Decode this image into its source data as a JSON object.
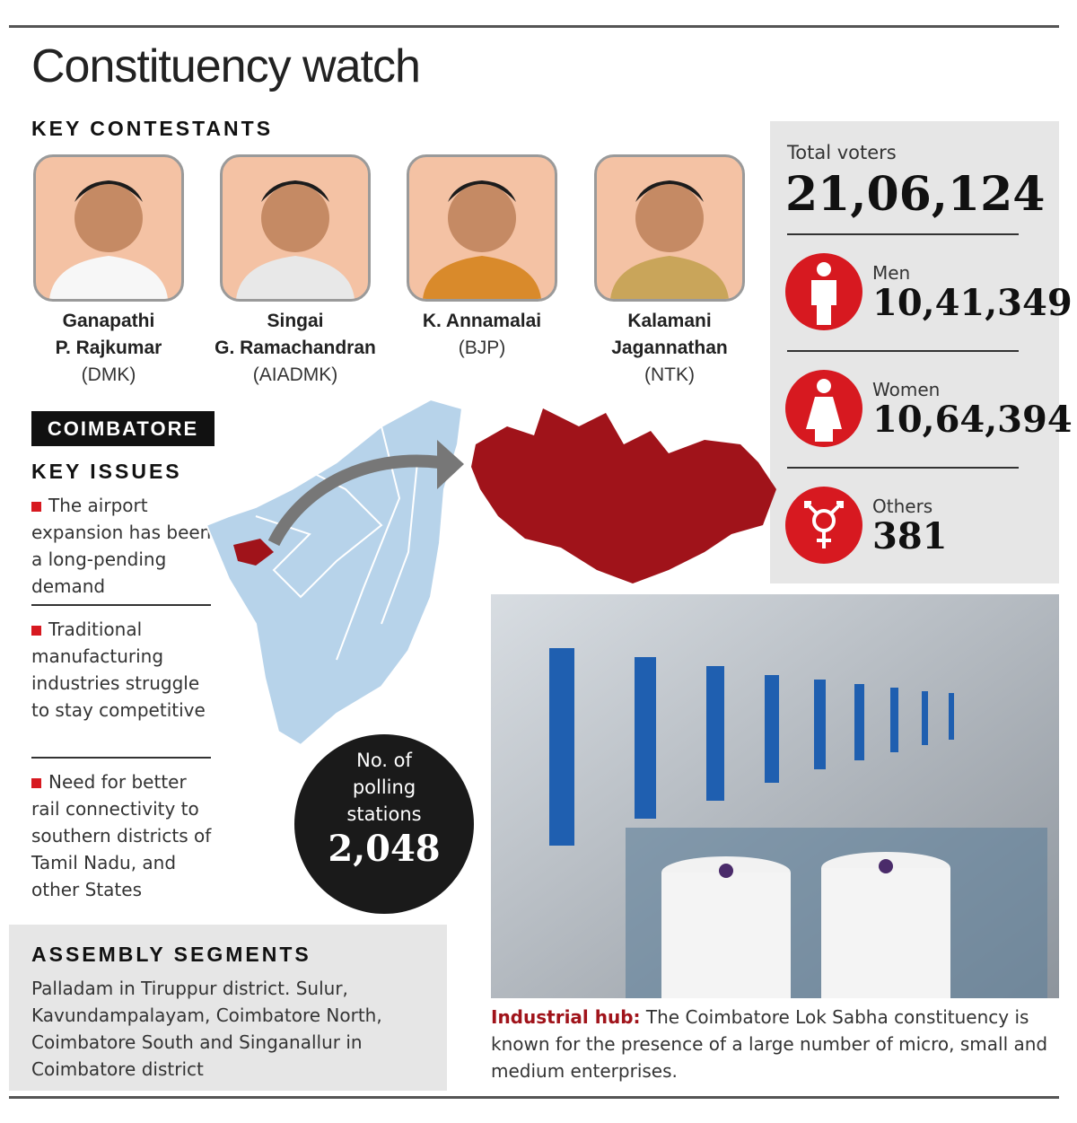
{
  "title": "Constituency watch",
  "contestants": {
    "heading": "KEY CONTESTANTS",
    "people": [
      {
        "name": [
          "Ganapathi",
          "P. Rajkumar"
        ],
        "party": "(DMK)"
      },
      {
        "name": [
          "Singai",
          "G. Ramachandran"
        ],
        "party": "(AIADMK)"
      },
      {
        "name": [
          "K. Annamalai"
        ],
        "party": "(BJP)"
      },
      {
        "name": [
          "Kalamani",
          "Jagannathan"
        ],
        "party": "(NTK)"
      }
    ]
  },
  "district": "COIMBATORE",
  "issues": {
    "heading": "KEY ISSUES",
    "items": [
      "The airport expansion has been a long-pending demand",
      "Traditional manufacturing industries struggle to stay competitive",
      "Need for better rail connectivity to southern districts of Tamil Nadu, and other States"
    ]
  },
  "voters": {
    "total_label": "Total voters",
    "total": "21,06,124",
    "groups": [
      {
        "label": "Men",
        "value": "10,41,349"
      },
      {
        "label": "Women",
        "value": "10,64,394"
      },
      {
        "label": "Others",
        "value": "381"
      }
    ]
  },
  "polling": {
    "label": "No. of polling stations",
    "value": "2,048"
  },
  "assembly": {
    "heading": "ASSEMBLY SEGMENTS",
    "text": "Palladam in Tiruppur district. Sulur, Kavundampalayam, Coimbatore North, Coimbatore South and Singanallur in Coimbatore district"
  },
  "caption": {
    "lead": "Industrial hub:",
    "text": "The Coimbatore Lok Sabha constituency is known for the presence of a large number of micro, small and medium enterprises."
  }
}
